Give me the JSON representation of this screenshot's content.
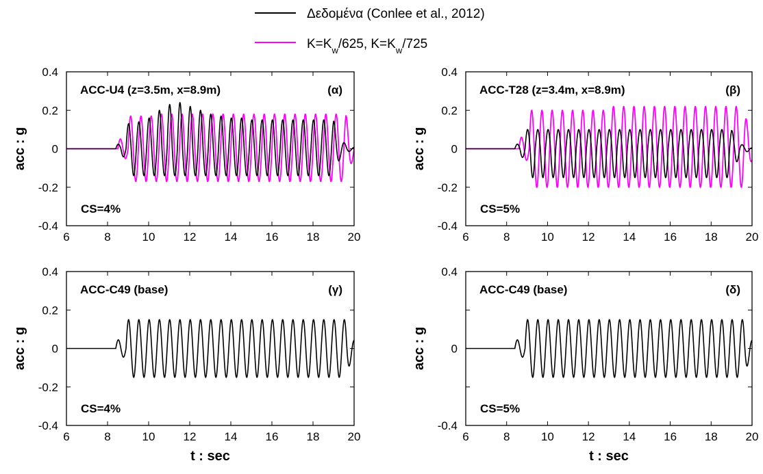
{
  "legend": {
    "entries": [
      {
        "label": "Δεδομένα (Conlee et al., 2012)",
        "color": "#000000"
      },
      {
        "label_parts": [
          "K=K",
          "w",
          "/625, K=K",
          "w",
          "/725"
        ],
        "color": "#ff00ff"
      }
    ]
  },
  "chart_data": [
    {
      "type": "line",
      "title": "ACC-U4 (z=3.5m, x=8.9m)",
      "tag": "(α)",
      "note": "CS=4%",
      "xlabel": "",
      "ylabel": "acc : g",
      "xlim": [
        6,
        20
      ],
      "ylim": [
        -0.4,
        0.4
      ],
      "xticks": [
        "6",
        "8",
        "10",
        "12",
        "14",
        "16",
        "18",
        "20"
      ],
      "yticks": [
        "0.4",
        "0.2",
        "0",
        "-0.2",
        "-0.4"
      ],
      "series": [
        {
          "name": "Δεδομένα (Conlee et al., 2012)",
          "color": "#000000",
          "onset": 8.4,
          "end": 19.0,
          "freq": 2.0,
          "amp_pos": [
            0.08,
            0.13,
            0.14,
            0.16,
            0.2,
            0.23,
            0.24,
            0.22,
            0.2,
            0.18,
            0.17,
            0.16,
            0.16,
            0.15,
            0.15
          ],
          "amp_neg": -0.14
        },
        {
          "name": "K=Kw/625, K=Kw/725",
          "color": "#ff00ff",
          "onset": 8.5,
          "end": 19.6,
          "freq": 2.0,
          "amp_pos": [
            0.17,
            0.17,
            0.17,
            0.17,
            0.18,
            0.18,
            0.18,
            0.18,
            0.18,
            0.18
          ],
          "amp_neg": -0.17
        }
      ]
    },
    {
      "type": "line",
      "title": "ACC-T28 (z=3.4m, x=8.9m)",
      "tag": "(β)",
      "note": "CS=5%",
      "xlabel": "",
      "ylabel": "acc : g",
      "xlim": [
        6,
        20
      ],
      "ylim": [
        -0.4,
        0.4
      ],
      "xticks": [
        "6",
        "8",
        "10",
        "12",
        "14",
        "16",
        "18",
        "20"
      ],
      "yticks": [
        "0.4",
        "0.2",
        "0",
        "-0.2",
        "-0.4"
      ],
      "series": [
        {
          "name": "Δεδομένα (Conlee et al., 2012)",
          "color": "#000000",
          "onset": 8.4,
          "end": 19.0,
          "freq": 2.0,
          "amp_pos": [
            0.08,
            0.1,
            0.1,
            0.1,
            0.1,
            0.1,
            0.1,
            0.1,
            0.1,
            0.1
          ],
          "amp_neg": -0.15
        },
        {
          "name": "K=Kw/625, K=Kw/725",
          "color": "#ff00ff",
          "onset": 8.6,
          "end": 19.6,
          "freq": 2.0,
          "amp_pos": [
            0.2,
            0.2,
            0.2,
            0.2,
            0.2,
            0.2,
            0.2,
            0.2,
            0.2,
            0.22
          ],
          "amp_neg": -0.2
        }
      ]
    },
    {
      "type": "line",
      "title": "ACC-C49 (base)",
      "tag": "(γ)",
      "note": "CS=4%",
      "xlabel": "t : sec",
      "ylabel": "acc : g",
      "xlim": [
        6,
        20
      ],
      "ylim": [
        -0.4,
        0.4
      ],
      "xticks": [
        "6",
        "8",
        "10",
        "12",
        "14",
        "16",
        "18",
        "20"
      ],
      "yticks": [
        "0.4",
        "0.2",
        "0",
        "-0.2",
        "-0.4"
      ],
      "series": [
        {
          "name": "",
          "color": "#000000",
          "onset": 8.4,
          "end": 19.6,
          "freq": 2.0,
          "amp_pos": [
            0.15
          ],
          "amp_neg": -0.15
        }
      ]
    },
    {
      "type": "line",
      "title": "ACC-C49 (base)",
      "tag": "(δ)",
      "note": "CS=5%",
      "xlabel": "t : sec",
      "ylabel": "acc : g",
      "xlim": [
        6,
        20
      ],
      "ylim": [
        -0.4,
        0.4
      ],
      "xticks": [
        "6",
        "8",
        "10",
        "12",
        "14",
        "16",
        "18",
        "20"
      ],
      "yticks": [
        "0.4",
        "",
        "0",
        "",
        "-0.4"
      ],
      "series": [
        {
          "name": "",
          "color": "#000000",
          "onset": 8.4,
          "end": 19.6,
          "freq": 2.0,
          "amp_pos": [
            0.15
          ],
          "amp_neg": -0.15
        }
      ]
    }
  ]
}
